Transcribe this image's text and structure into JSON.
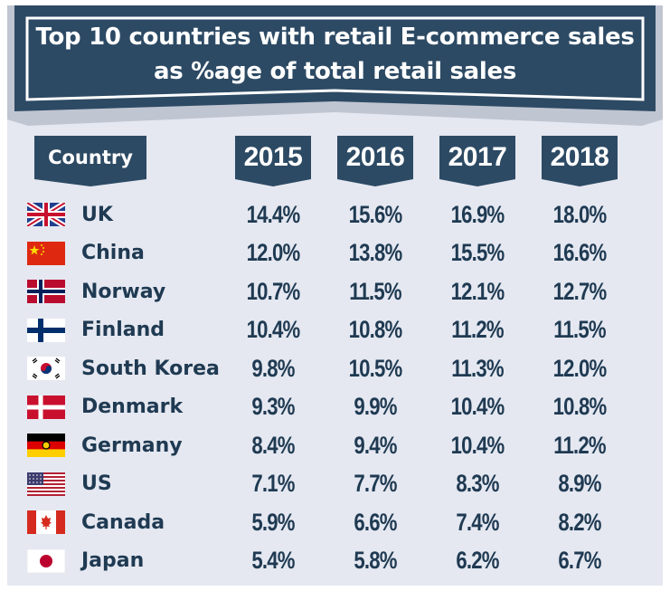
{
  "colors": {
    "navy": "#2d4a64",
    "text": "#1f3a52",
    "panel": "#e5e8f1"
  },
  "title_line1": "Top 10 countries with retail E-commerce sales",
  "title_line2": "as %age of total retail sales",
  "chart_data": {
    "type": "table",
    "title": "Top 10 countries with retail E-commerce sales as %age of total retail sales",
    "country_header": "Country",
    "columns": [
      "2015",
      "2016",
      "2017",
      "2018"
    ],
    "rows": [
      {
        "country": "UK",
        "flag": "uk-flag-icon",
        "values": [
          "14.4%",
          "15.6%",
          "16.9%",
          "18.0%"
        ]
      },
      {
        "country": "China",
        "flag": "china-flag-icon",
        "values": [
          "12.0%",
          "13.8%",
          "15.5%",
          "16.6%"
        ]
      },
      {
        "country": "Norway",
        "flag": "norway-flag-icon",
        "values": [
          "10.7%",
          "11.5%",
          "12.1%",
          "12.7%"
        ]
      },
      {
        "country": "Finland",
        "flag": "finland-flag-icon",
        "values": [
          "10.4%",
          "10.8%",
          "11.2%",
          "11.5%"
        ]
      },
      {
        "country": "South Korea",
        "flag": "south-korea-flag-icon",
        "values": [
          "9.8%",
          "10.5%",
          "11.3%",
          "12.0%"
        ]
      },
      {
        "country": "Denmark",
        "flag": "denmark-flag-icon",
        "values": [
          "9.3%",
          "9.9%",
          "10.4%",
          "10.8%"
        ]
      },
      {
        "country": "Germany",
        "flag": "germany-flag-icon",
        "values": [
          "8.4%",
          "9.4%",
          "10.4%",
          "11.2%"
        ]
      },
      {
        "country": "US",
        "flag": "us-flag-icon",
        "values": [
          "7.1%",
          "7.7%",
          "8.3%",
          "8.9%"
        ]
      },
      {
        "country": "Canada",
        "flag": "canada-flag-icon",
        "values": [
          "5.9%",
          "6.6%",
          "7.4%",
          "8.2%"
        ]
      },
      {
        "country": "Japan",
        "flag": "japan-flag-icon",
        "values": [
          "5.4%",
          "5.8%",
          "6.2%",
          "6.7%"
        ]
      }
    ]
  }
}
